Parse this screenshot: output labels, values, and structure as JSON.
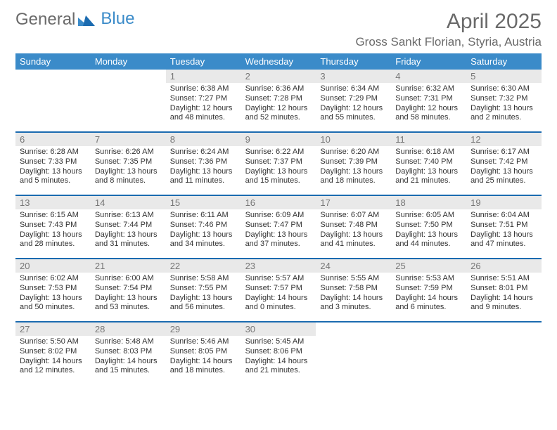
{
  "brand": {
    "word1": "General",
    "word2": "Blue"
  },
  "title": "April 2025",
  "location": "Gross Sankt Florian, Styria, Austria",
  "dayNames": [
    "Sunday",
    "Monday",
    "Tuesday",
    "Wednesday",
    "Thursday",
    "Friday",
    "Saturday"
  ],
  "colors": {
    "headerBar": "#3b8bc9",
    "altRow": "#e9e9e9",
    "cellBorder": "#1b6bb0"
  },
  "weeks": [
    [
      null,
      null,
      {
        "n": "1",
        "sunrise": "6:38 AM",
        "sunset": "7:27 PM",
        "daylight": "12 hours and 48 minutes."
      },
      {
        "n": "2",
        "sunrise": "6:36 AM",
        "sunset": "7:28 PM",
        "daylight": "12 hours and 52 minutes."
      },
      {
        "n": "3",
        "sunrise": "6:34 AM",
        "sunset": "7:29 PM",
        "daylight": "12 hours and 55 minutes."
      },
      {
        "n": "4",
        "sunrise": "6:32 AM",
        "sunset": "7:31 PM",
        "daylight": "12 hours and 58 minutes."
      },
      {
        "n": "5",
        "sunrise": "6:30 AM",
        "sunset": "7:32 PM",
        "daylight": "13 hours and 2 minutes."
      }
    ],
    [
      {
        "n": "6",
        "sunrise": "6:28 AM",
        "sunset": "7:33 PM",
        "daylight": "13 hours and 5 minutes."
      },
      {
        "n": "7",
        "sunrise": "6:26 AM",
        "sunset": "7:35 PM",
        "daylight": "13 hours and 8 minutes."
      },
      {
        "n": "8",
        "sunrise": "6:24 AM",
        "sunset": "7:36 PM",
        "daylight": "13 hours and 11 minutes."
      },
      {
        "n": "9",
        "sunrise": "6:22 AM",
        "sunset": "7:37 PM",
        "daylight": "13 hours and 15 minutes."
      },
      {
        "n": "10",
        "sunrise": "6:20 AM",
        "sunset": "7:39 PM",
        "daylight": "13 hours and 18 minutes."
      },
      {
        "n": "11",
        "sunrise": "6:18 AM",
        "sunset": "7:40 PM",
        "daylight": "13 hours and 21 minutes."
      },
      {
        "n": "12",
        "sunrise": "6:17 AM",
        "sunset": "7:42 PM",
        "daylight": "13 hours and 25 minutes."
      }
    ],
    [
      {
        "n": "13",
        "sunrise": "6:15 AM",
        "sunset": "7:43 PM",
        "daylight": "13 hours and 28 minutes."
      },
      {
        "n": "14",
        "sunrise": "6:13 AM",
        "sunset": "7:44 PM",
        "daylight": "13 hours and 31 minutes."
      },
      {
        "n": "15",
        "sunrise": "6:11 AM",
        "sunset": "7:46 PM",
        "daylight": "13 hours and 34 minutes."
      },
      {
        "n": "16",
        "sunrise": "6:09 AM",
        "sunset": "7:47 PM",
        "daylight": "13 hours and 37 minutes."
      },
      {
        "n": "17",
        "sunrise": "6:07 AM",
        "sunset": "7:48 PM",
        "daylight": "13 hours and 41 minutes."
      },
      {
        "n": "18",
        "sunrise": "6:05 AM",
        "sunset": "7:50 PM",
        "daylight": "13 hours and 44 minutes."
      },
      {
        "n": "19",
        "sunrise": "6:04 AM",
        "sunset": "7:51 PM",
        "daylight": "13 hours and 47 minutes."
      }
    ],
    [
      {
        "n": "20",
        "sunrise": "6:02 AM",
        "sunset": "7:53 PM",
        "daylight": "13 hours and 50 minutes."
      },
      {
        "n": "21",
        "sunrise": "6:00 AM",
        "sunset": "7:54 PM",
        "daylight": "13 hours and 53 minutes."
      },
      {
        "n": "22",
        "sunrise": "5:58 AM",
        "sunset": "7:55 PM",
        "daylight": "13 hours and 56 minutes."
      },
      {
        "n": "23",
        "sunrise": "5:57 AM",
        "sunset": "7:57 PM",
        "daylight": "14 hours and 0 minutes."
      },
      {
        "n": "24",
        "sunrise": "5:55 AM",
        "sunset": "7:58 PM",
        "daylight": "14 hours and 3 minutes."
      },
      {
        "n": "25",
        "sunrise": "5:53 AM",
        "sunset": "7:59 PM",
        "daylight": "14 hours and 6 minutes."
      },
      {
        "n": "26",
        "sunrise": "5:51 AM",
        "sunset": "8:01 PM",
        "daylight": "14 hours and 9 minutes."
      }
    ],
    [
      {
        "n": "27",
        "sunrise": "5:50 AM",
        "sunset": "8:02 PM",
        "daylight": "14 hours and 12 minutes."
      },
      {
        "n": "28",
        "sunrise": "5:48 AM",
        "sunset": "8:03 PM",
        "daylight": "14 hours and 15 minutes."
      },
      {
        "n": "29",
        "sunrise": "5:46 AM",
        "sunset": "8:05 PM",
        "daylight": "14 hours and 18 minutes."
      },
      {
        "n": "30",
        "sunrise": "5:45 AM",
        "sunset": "8:06 PM",
        "daylight": "14 hours and 21 minutes."
      },
      null,
      null,
      null
    ]
  ]
}
